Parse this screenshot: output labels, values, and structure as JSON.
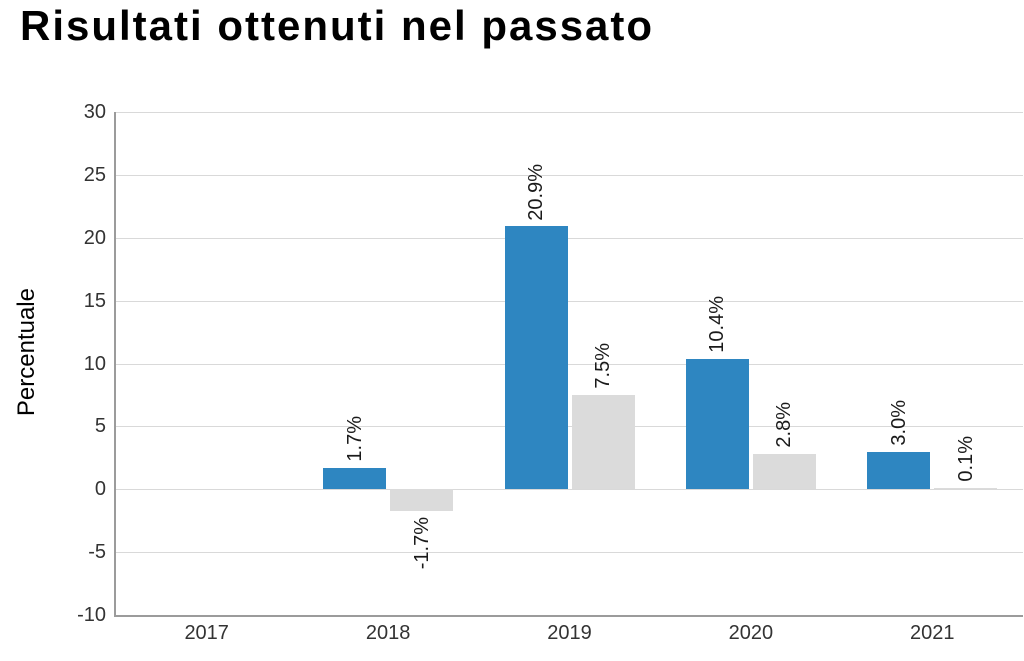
{
  "title": "Risultati ottenuti nel passato",
  "chart_data": {
    "type": "bar",
    "title": "Risultati ottenuti nel passato",
    "ylabel": "Percentuale",
    "xlabel": "",
    "categories": [
      "2017",
      "2018",
      "2019",
      "2020",
      "2021"
    ],
    "series": [
      {
        "name": "blue",
        "color": "#2E86C1",
        "values": [
          null,
          1.7,
          20.9,
          10.4,
          3.0
        ],
        "labels": [
          "",
          "1.7%",
          "20.9%",
          "10.4%",
          "3.0%"
        ]
      },
      {
        "name": "gray",
        "color": "#DBDBDB",
        "values": [
          null,
          -1.7,
          7.5,
          2.8,
          0.1
        ],
        "labels": [
          "",
          "-1.7%",
          "7.5%",
          "2.8%",
          "0.1%"
        ]
      }
    ],
    "ylim": [
      -10,
      30
    ],
    "yticks": [
      30,
      25,
      20,
      15,
      10,
      5,
      0,
      -5,
      -10
    ],
    "grid": true,
    "legend_position": "none",
    "bar_label_rotation": 90,
    "colors": {
      "grid": "#D9D9D9",
      "axis": "#9B9B9B",
      "tick_text": "#333333",
      "label_text": "#1A1A1A",
      "title_text": "#000000"
    }
  }
}
